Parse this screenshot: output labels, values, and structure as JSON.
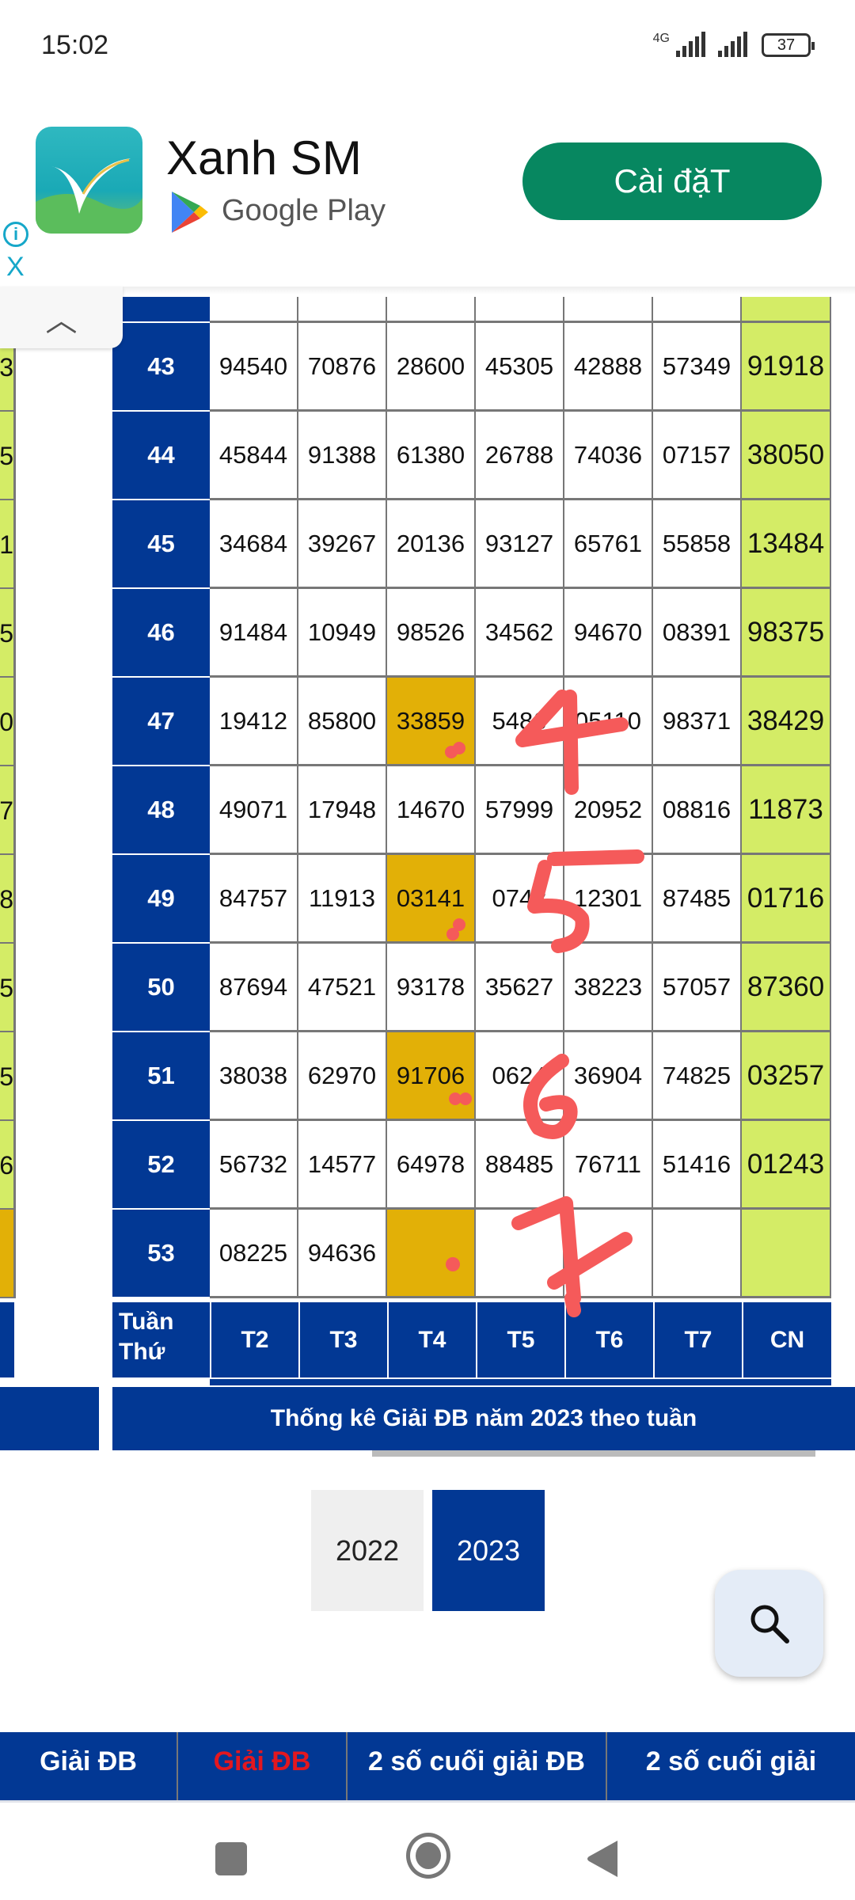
{
  "status_bar": {
    "time": "15:02",
    "network": "4G",
    "battery": "37"
  },
  "ad": {
    "app_name": "Xanh SM",
    "store": "Google Play",
    "install_label": "Cài đặT",
    "info_icon": "info-icon",
    "close_label": "X"
  },
  "colors": {
    "header_blue": "#023894",
    "sunday_green": "#d4ec66",
    "highlight_gold": "#e2b007",
    "install_green": "#078760",
    "annotation_red": "#f55a5a"
  },
  "table": {
    "left_partial_digits": [
      "3",
      "5",
      "1",
      "5",
      "0",
      "7",
      "8",
      "5",
      "5",
      "6",
      ""
    ],
    "header": {
      "week_label": "Tuần Thứ",
      "days": [
        "T2",
        "T3",
        "T4",
        "T5",
        "T6",
        "T7",
        "CN"
      ]
    },
    "rows": [
      {
        "week": "43",
        "values": [
          "94540",
          "70876",
          "28600",
          "45305",
          "42888",
          "57349",
          "91918"
        ]
      },
      {
        "week": "44",
        "values": [
          "45844",
          "91388",
          "61380",
          "26788",
          "74036",
          "07157",
          "38050"
        ]
      },
      {
        "week": "45",
        "values": [
          "34684",
          "39267",
          "20136",
          "93127",
          "65761",
          "55858",
          "13484"
        ]
      },
      {
        "week": "46",
        "values": [
          "91484",
          "10949",
          "98526",
          "34562",
          "94670",
          "08391",
          "98375"
        ]
      },
      {
        "week": "47",
        "values": [
          "19412",
          "85800",
          "33859",
          "5486",
          "05110",
          "98371",
          "38429"
        ],
        "highlight": 2
      },
      {
        "week": "48",
        "values": [
          "49071",
          "17948",
          "14670",
          "57999",
          "20952",
          "08816",
          "11873"
        ]
      },
      {
        "week": "49",
        "values": [
          "84757",
          "11913",
          "03141",
          "0742",
          "12301",
          "87485",
          "01716"
        ],
        "highlight": 2
      },
      {
        "week": "50",
        "values": [
          "87694",
          "47521",
          "93178",
          "35627",
          "38223",
          "57057",
          "87360"
        ]
      },
      {
        "week": "51",
        "values": [
          "38038",
          "62970",
          "91706",
          "0624",
          "36904",
          "74825",
          "03257"
        ],
        "highlight": 2
      },
      {
        "week": "52",
        "values": [
          "56732",
          "14577",
          "64978",
          "88485",
          "76711",
          "51416",
          "01243"
        ]
      },
      {
        "week": "53",
        "values": [
          "08225",
          "94636",
          "",
          "",
          "",
          "",
          ""
        ],
        "highlight": 2
      }
    ],
    "title": "Thống kê Giải ĐB năm 2023 theo tuần"
  },
  "annotations": [
    "4",
    "5",
    "6",
    "7"
  ],
  "years": [
    "2022",
    "2023"
  ],
  "selected_year": "2023",
  "bottom_tabs": [
    {
      "label": "Giải ĐB",
      "active": false
    },
    {
      "label": "Giải ĐB",
      "active": true
    },
    {
      "label": "2 số cuối giải ĐB",
      "active": false
    },
    {
      "label": "2 số cuối giải",
      "active": false
    }
  ]
}
